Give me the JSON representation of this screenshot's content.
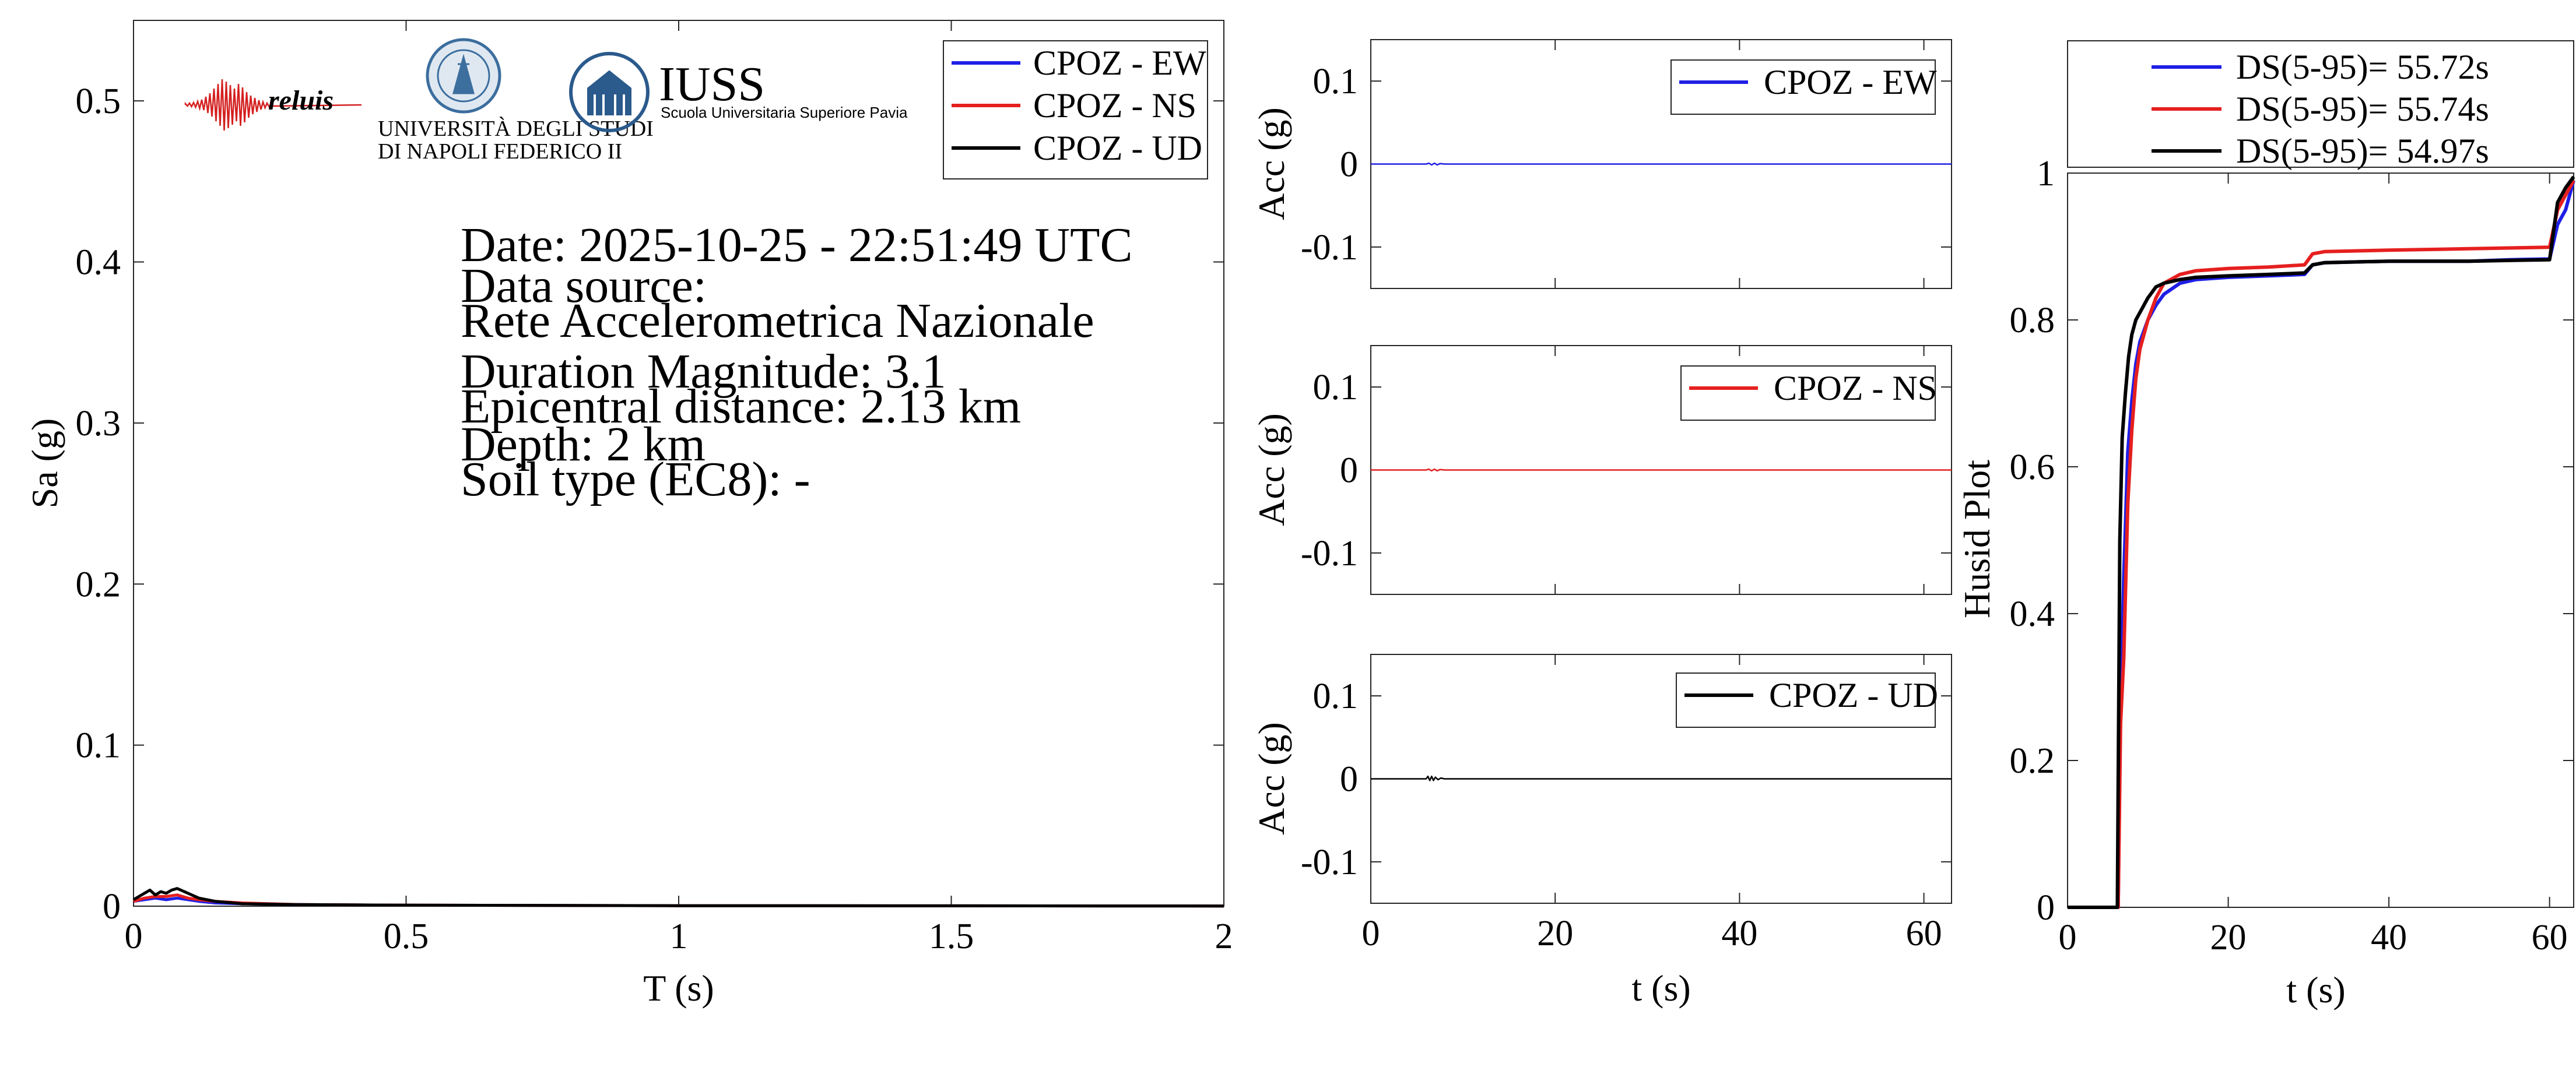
{
  "colors": {
    "ew": "#1f1fe6",
    "ns": "#e61f1f",
    "ud": "#000000",
    "iuss_blue": "#2b5a8c",
    "reluis_red": "#d42020",
    "unina_blue": "#3c6e9e"
  },
  "logos": {
    "reluis": "reluis",
    "unina_line1": "UNIVERSITÀ DEGLI STUDI",
    "unina_line2": "DI NAPOLI FEDERICO II",
    "iuss_name": "IUSS",
    "iuss_sub": "Scuola Universitaria Superiore Pavia"
  },
  "info": {
    "date": "Date: 2025-10-25 - 22:51:49 UTC",
    "source_label": "Data source:",
    "source": "Rete Accelerometrica Nazionale",
    "magnitude": "Duration Magnitude: 3.1",
    "distance": "Epicentral distance: 2.13 km",
    "depth": "Depth: 2 km",
    "soil": "Soil type (EC8): -"
  },
  "chart_data": [
    {
      "id": "spectrum",
      "type": "line",
      "title": "",
      "xlabel": "T (s)",
      "ylabel": "Sa (g)",
      "xlim": [
        0,
        2
      ],
      "ylim": [
        0,
        0.55
      ],
      "xticks": [
        0,
        0.5,
        1,
        1.5,
        2
      ],
      "xtick_labels": [
        "0",
        "0.5",
        "1",
        "1.5",
        "2"
      ],
      "yticks": [
        0,
        0.1,
        0.2,
        0.3,
        0.4,
        0.5
      ],
      "ytick_labels": [
        "0",
        "0.1",
        "0.2",
        "0.3",
        "0.4",
        "0.5"
      ],
      "legend_position": "top-right",
      "series": [
        {
          "name": "CPOZ - EW",
          "color_key": "ew",
          "x": [
            0,
            0.02,
            0.04,
            0.06,
            0.08,
            0.1,
            0.12,
            0.15,
            0.2,
            0.3,
            0.5,
            1,
            1.5,
            2
          ],
          "y": [
            0.003,
            0.004,
            0.005,
            0.004,
            0.005,
            0.004,
            0.003,
            0.002,
            0.0015,
            0.001,
            0.0006,
            0.0003,
            0.0002,
            0.0001
          ]
        },
        {
          "name": "CPOZ - NS",
          "color_key": "ns",
          "x": [
            0,
            0.02,
            0.04,
            0.06,
            0.08,
            0.1,
            0.12,
            0.15,
            0.2,
            0.3,
            0.5,
            1,
            1.5,
            2
          ],
          "y": [
            0.003,
            0.005,
            0.006,
            0.006,
            0.007,
            0.005,
            0.004,
            0.003,
            0.002,
            0.001,
            0.0006,
            0.0003,
            0.0002,
            0.0001
          ]
        },
        {
          "name": "CPOZ - UD",
          "color_key": "ud",
          "x": [
            0,
            0.02,
            0.03,
            0.04,
            0.05,
            0.06,
            0.07,
            0.08,
            0.1,
            0.12,
            0.15,
            0.2,
            0.3,
            0.5,
            1,
            1.5,
            2
          ],
          "y": [
            0.004,
            0.008,
            0.01,
            0.007,
            0.009,
            0.008,
            0.01,
            0.011,
            0.008,
            0.005,
            0.003,
            0.0015,
            0.001,
            0.0006,
            0.0003,
            0.0002,
            0.0001
          ]
        }
      ]
    },
    {
      "id": "acc_ew",
      "type": "line",
      "title": "",
      "xlabel": "",
      "ylabel": "Acc (g)",
      "xlim": [
        0,
        63
      ],
      "ylim": [
        -0.15,
        0.15
      ],
      "xticks": [
        0,
        20,
        40,
        60
      ],
      "xtick_labels": [],
      "yticks": [
        -0.1,
        0,
        0.1
      ],
      "ytick_labels": [
        "-0.1",
        "0",
        "0.1"
      ],
      "legend_position": "top-right",
      "series": [
        {
          "name": "CPOZ - EW",
          "color_key": "ew",
          "x": [
            0,
            6,
            6.3,
            6.6,
            6.9,
            7.2,
            7.5,
            8,
            63
          ],
          "y": [
            0,
            0,
            0.001,
            -0.001,
            0.001,
            -0.001,
            0.0005,
            0,
            0
          ]
        }
      ]
    },
    {
      "id": "acc_ns",
      "type": "line",
      "title": "",
      "xlabel": "",
      "ylabel": "Acc (g)",
      "xlim": [
        0,
        63
      ],
      "ylim": [
        -0.15,
        0.15
      ],
      "xticks": [
        0,
        20,
        40,
        60
      ],
      "xtick_labels": [],
      "yticks": [
        -0.1,
        0,
        0.1
      ],
      "ytick_labels": [
        "-0.1",
        "0",
        "0.1"
      ],
      "legend_position": "top-right",
      "series": [
        {
          "name": "CPOZ - NS",
          "color_key": "ns",
          "x": [
            0,
            6,
            6.3,
            6.6,
            6.9,
            7.2,
            7.5,
            8,
            63
          ],
          "y": [
            0,
            0,
            0.001,
            -0.001,
            0.001,
            -0.001,
            0.0005,
            0,
            0
          ]
        }
      ]
    },
    {
      "id": "acc_ud",
      "type": "line",
      "title": "",
      "xlabel": "t (s)",
      "ylabel": "Acc (g)",
      "xlim": [
        0,
        63
      ],
      "ylim": [
        -0.15,
        0.15
      ],
      "xticks": [
        0,
        20,
        40,
        60
      ],
      "xtick_labels": [
        "0",
        "20",
        "40",
        "60"
      ],
      "yticks": [
        -0.1,
        0,
        0.1
      ],
      "ytick_labels": [
        "-0.1",
        "0",
        "0.1"
      ],
      "legend_position": "top-right",
      "series": [
        {
          "name": "CPOZ - UD",
          "color_key": "ud",
          "x": [
            0,
            6,
            6.2,
            6.4,
            6.6,
            6.8,
            7.0,
            7.3,
            7.6,
            8,
            63
          ],
          "y": [
            0,
            0,
            0.003,
            -0.002,
            0.003,
            -0.002,
            0.002,
            -0.001,
            0.001,
            0,
            0
          ]
        }
      ]
    },
    {
      "id": "husid",
      "type": "line",
      "title": "",
      "xlabel": "t (s)",
      "ylabel": "Husid Plot",
      "xlim": [
        0,
        63
      ],
      "ylim": [
        0,
        1
      ],
      "xticks": [
        0,
        20,
        40,
        60
      ],
      "xtick_labels": [
        "0",
        "20",
        "40",
        "60"
      ],
      "yticks": [
        0,
        0.2,
        0.4,
        0.6,
        0.8,
        1
      ],
      "ytick_labels": [
        "0",
        "0.2",
        "0.4",
        "0.6",
        "0.8",
        "1"
      ],
      "legend_position": "above",
      "series": [
        {
          "name": "DS(5-95)= 55.72s",
          "color_key": "ew",
          "x": [
            0,
            6.3,
            6.6,
            7,
            7.5,
            8,
            8.5,
            9,
            10,
            11,
            12,
            14,
            16,
            20,
            25,
            29.5,
            30.5,
            32,
            40,
            50,
            55,
            60,
            61,
            62,
            63
          ],
          "y": [
            0,
            0,
            0.28,
            0.45,
            0.62,
            0.69,
            0.74,
            0.77,
            0.8,
            0.82,
            0.835,
            0.85,
            0.855,
            0.858,
            0.86,
            0.862,
            0.875,
            0.878,
            0.88,
            0.88,
            0.882,
            0.883,
            0.93,
            0.95,
            0.99
          ]
        },
        {
          "name": "DS(5-95)= 55.74s",
          "color_key": "ns",
          "x": [
            0,
            6.3,
            6.6,
            7,
            7.5,
            8,
            8.5,
            9,
            10,
            11,
            12,
            14,
            16,
            20,
            25,
            29.5,
            30.5,
            32,
            40,
            50,
            55,
            60,
            61,
            62,
            63
          ],
          "y": [
            0,
            0,
            0.25,
            0.34,
            0.55,
            0.65,
            0.72,
            0.76,
            0.8,
            0.83,
            0.85,
            0.862,
            0.867,
            0.87,
            0.872,
            0.875,
            0.89,
            0.893,
            0.895,
            0.897,
            0.898,
            0.899,
            0.95,
            0.97,
            0.99
          ]
        },
        {
          "name": "DS(5-95)= 54.97s",
          "color_key": "ud",
          "x": [
            0,
            6.2,
            6.5,
            6.8,
            7.2,
            7.6,
            8,
            8.5,
            9,
            10,
            11,
            12,
            14,
            16,
            20,
            25,
            29.5,
            30.5,
            32,
            40,
            50,
            55,
            60,
            61,
            62,
            63
          ],
          "y": [
            0,
            0,
            0.5,
            0.64,
            0.7,
            0.75,
            0.78,
            0.8,
            0.81,
            0.83,
            0.845,
            0.85,
            0.855,
            0.858,
            0.86,
            0.862,
            0.864,
            0.875,
            0.878,
            0.88,
            0.88,
            0.881,
            0.882,
            0.96,
            0.98,
            0.995
          ]
        }
      ]
    }
  ]
}
